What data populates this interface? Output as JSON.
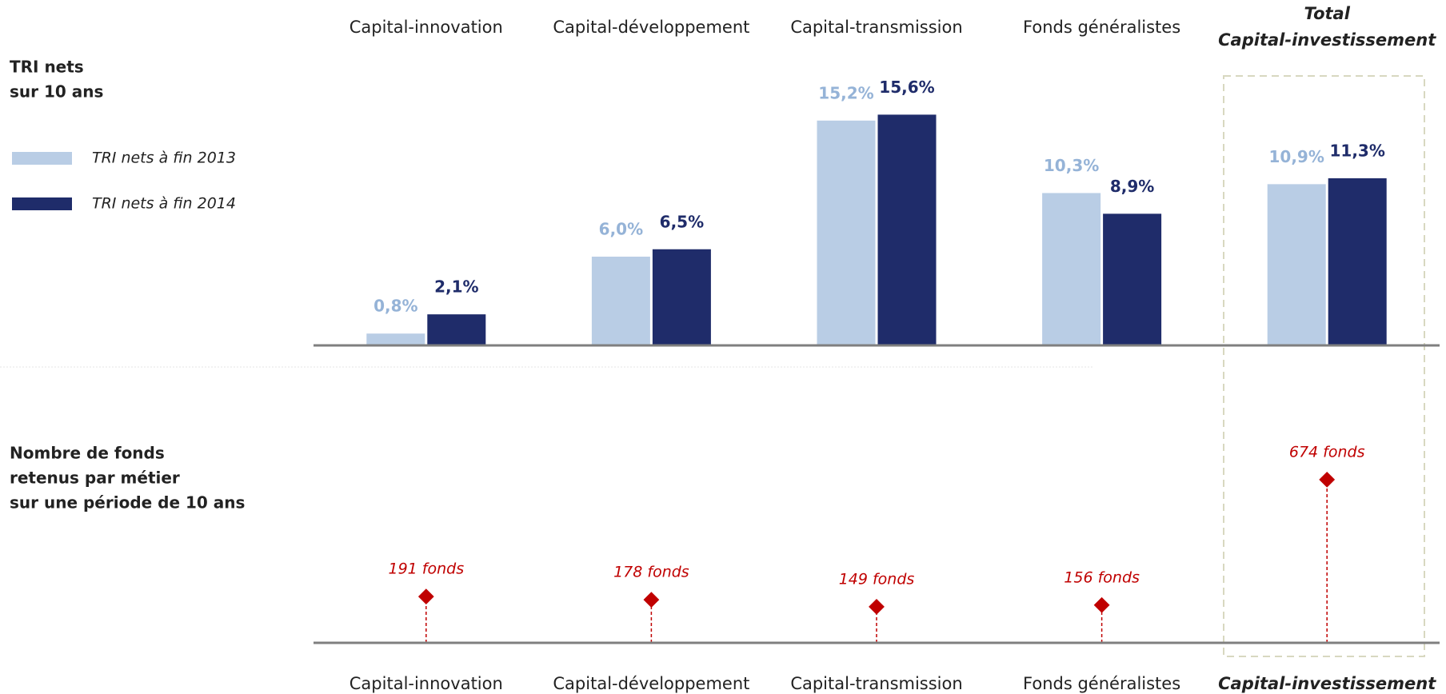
{
  "chart_data": [
    {
      "type": "bar",
      "title": [
        "TRI nets",
        "sur 10 ans"
      ],
      "categories": [
        "Capital-innovation",
        "Capital-développement",
        "Capital-transmission",
        "Fonds généralistes",
        "Capital-investissement"
      ],
      "highlight": 4,
      "highlight_label": "Total",
      "series": [
        {
          "name": "TRI nets à fin 2013",
          "color": "#b9cde5",
          "label_color": "#95b3d7",
          "values": [
            0.8,
            6.0,
            15.2,
            10.3,
            10.9
          ],
          "value_labels": [
            "0,8%",
            "6,0%",
            "15,2%",
            "10,3%",
            "10,9%"
          ]
        },
        {
          "name": "TRI nets à fin 2014",
          "color": "#1f2c6a",
          "label_color": "#1f2c6a",
          "values": [
            2.1,
            6.5,
            15.6,
            8.9,
            11.3
          ],
          "value_labels": [
            "2,1%",
            "6,5%",
            "15,6%",
            "8,9%",
            "11,3%"
          ]
        }
      ],
      "ylim": [
        0,
        16
      ],
      "legend": "left"
    },
    {
      "type": "lollipop",
      "title": [
        "Nombre de fonds",
        "retenus par métier",
        "sur une période de 10 ans"
      ],
      "categories": [
        "Capital-innovation",
        "Capital-développement",
        "Capital-transmission",
        "Fonds généralistes",
        "Capital-investissement"
      ],
      "highlight": 4,
      "color": "#c00000",
      "values": [
        191,
        178,
        149,
        156,
        674
      ],
      "value_labels": [
        "191 fonds",
        "178 fonds",
        "149 fonds",
        "156 fonds",
        "674 fonds"
      ],
      "ylim": [
        0,
        700
      ]
    }
  ]
}
